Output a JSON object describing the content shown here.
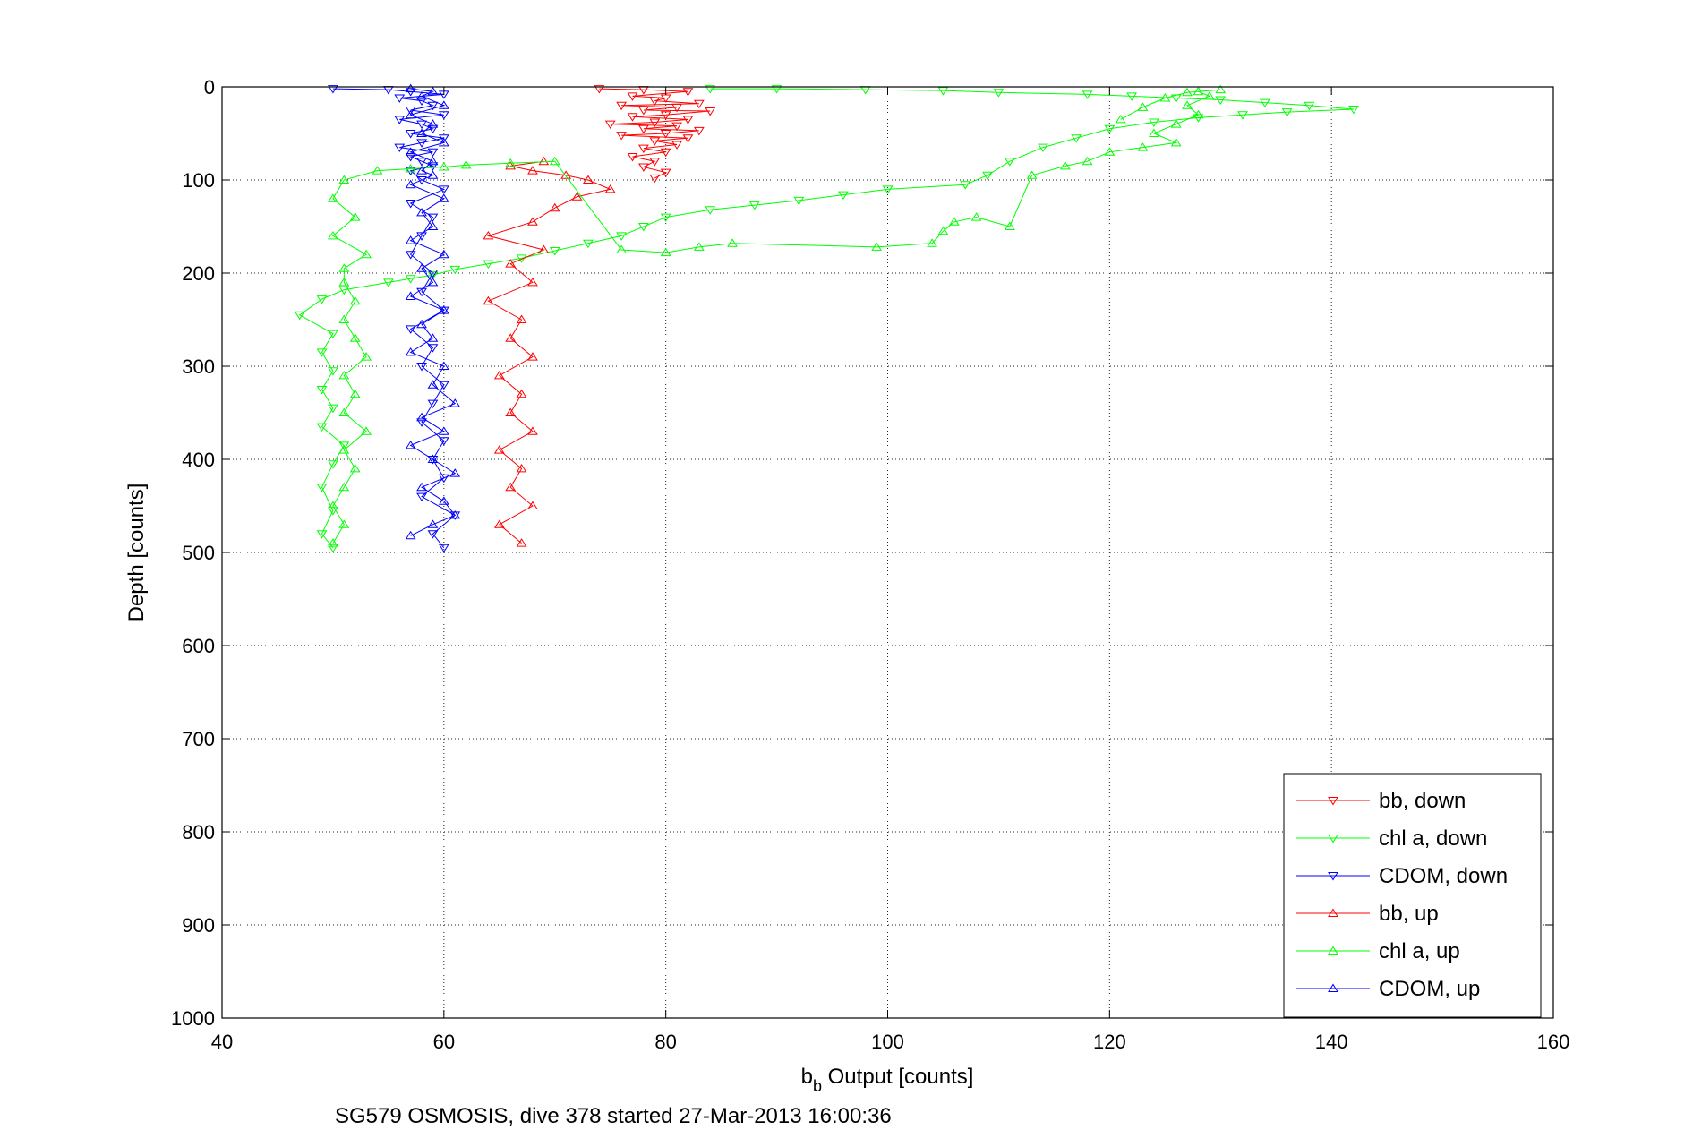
{
  "chart_data": {
    "type": "scatter",
    "xlabel": "b",
    "xlabel_subscript": "b",
    "xlabel_rest": " Output [counts]",
    "ylabel": "Depth [counts]",
    "caption": "SG579 OSMOSIS, dive 378 started 27-Mar-2013 16:00:36",
    "xlim": [
      40,
      160
    ],
    "ylim": [
      0,
      1000
    ],
    "y_reversed": true,
    "xticks": [
      40,
      60,
      80,
      100,
      120,
      140,
      160
    ],
    "yticks": [
      0,
      100,
      200,
      300,
      400,
      500,
      600,
      700,
      800,
      900,
      1000
    ],
    "grid": true,
    "legend_position": "bottom-right",
    "series": [
      {
        "name": "bb, down",
        "color": "#ff0000",
        "marker": "triangle-down",
        "points": [
          [
            74,
            2
          ],
          [
            78,
            3
          ],
          [
            82,
            5
          ],
          [
            77,
            10
          ],
          [
            80,
            12
          ],
          [
            79,
            15
          ],
          [
            83,
            18
          ],
          [
            76,
            20
          ],
          [
            81,
            22
          ],
          [
            78,
            25
          ],
          [
            84,
            26
          ],
          [
            80,
            30
          ],
          [
            77,
            32
          ],
          [
            82,
            35
          ],
          [
            79,
            38
          ],
          [
            75,
            40
          ],
          [
            81,
            42
          ],
          [
            78,
            45
          ],
          [
            83,
            47
          ],
          [
            80,
            50
          ],
          [
            76,
            52
          ],
          [
            82,
            55
          ],
          [
            79,
            58
          ],
          [
            81,
            62
          ],
          [
            78,
            66
          ],
          [
            80,
            70
          ],
          [
            77,
            75
          ],
          [
            79,
            80
          ],
          [
            78,
            86
          ],
          [
            80,
            92
          ],
          [
            79,
            98
          ]
        ]
      },
      {
        "name": "chl a, down",
        "color": "#00ff00",
        "marker": "triangle-down",
        "points": [
          [
            84,
            2
          ],
          [
            90,
            2
          ],
          [
            98,
            3
          ],
          [
            105,
            4
          ],
          [
            110,
            6
          ],
          [
            118,
            8
          ],
          [
            122,
            10
          ],
          [
            126,
            12
          ],
          [
            130,
            14
          ],
          [
            134,
            17
          ],
          [
            138,
            20
          ],
          [
            142,
            24
          ],
          [
            136,
            27
          ],
          [
            132,
            30
          ],
          [
            128,
            33
          ],
          [
            124,
            38
          ],
          [
            120,
            45
          ],
          [
            117,
            55
          ],
          [
            114,
            65
          ],
          [
            111,
            80
          ],
          [
            109,
            95
          ],
          [
            107,
            105
          ],
          [
            100,
            110
          ],
          [
            96,
            116
          ],
          [
            92,
            122
          ],
          [
            88,
            127
          ],
          [
            84,
            132
          ],
          [
            80,
            140
          ],
          [
            78,
            150
          ],
          [
            76,
            160
          ],
          [
            73,
            168
          ],
          [
            70,
            176
          ],
          [
            67,
            184
          ],
          [
            64,
            190
          ],
          [
            61,
            196
          ],
          [
            59,
            202
          ],
          [
            57,
            206
          ],
          [
            55,
            210
          ],
          [
            51,
            218
          ],
          [
            49,
            228
          ],
          [
            47,
            245
          ],
          [
            50,
            265
          ],
          [
            49,
            285
          ],
          [
            50,
            305
          ],
          [
            49,
            325
          ],
          [
            50,
            345
          ],
          [
            49,
            365
          ],
          [
            51,
            385
          ],
          [
            50,
            405
          ],
          [
            49,
            430
          ],
          [
            50,
            455
          ],
          [
            49,
            480
          ],
          [
            50,
            495
          ]
        ]
      },
      {
        "name": "CDOM, down",
        "color": "#0000ff",
        "marker": "triangle-down",
        "points": [
          [
            50,
            2
          ],
          [
            55,
            3
          ],
          [
            57,
            5
          ],
          [
            60,
            8
          ],
          [
            56,
            12
          ],
          [
            58,
            15
          ],
          [
            59,
            20
          ],
          [
            57,
            25
          ],
          [
            60,
            30
          ],
          [
            56,
            35
          ],
          [
            58,
            40
          ],
          [
            59,
            45
          ],
          [
            57,
            50
          ],
          [
            60,
            55
          ],
          [
            58,
            60
          ],
          [
            56,
            65
          ],
          [
            59,
            70
          ],
          [
            57,
            75
          ],
          [
            58,
            80
          ],
          [
            59,
            85
          ],
          [
            57,
            90
          ],
          [
            58,
            100
          ],
          [
            60,
            110
          ],
          [
            57,
            125
          ],
          [
            59,
            140
          ],
          [
            58,
            160
          ],
          [
            57,
            180
          ],
          [
            59,
            200
          ],
          [
            58,
            220
          ],
          [
            60,
            240
          ],
          [
            57,
            260
          ],
          [
            59,
            280
          ],
          [
            58,
            300
          ],
          [
            60,
            320
          ],
          [
            59,
            340
          ],
          [
            58,
            360
          ],
          [
            60,
            380
          ],
          [
            59,
            400
          ],
          [
            60,
            420
          ],
          [
            58,
            440
          ],
          [
            61,
            460
          ],
          [
            59,
            480
          ],
          [
            60,
            495
          ]
        ]
      },
      {
        "name": "bb, up",
        "color": "#ff0000",
        "marker": "triangle-up",
        "points": [
          [
            67,
            490
          ],
          [
            65,
            470
          ],
          [
            68,
            450
          ],
          [
            66,
            430
          ],
          [
            67,
            410
          ],
          [
            65,
            390
          ],
          [
            68,
            370
          ],
          [
            66,
            350
          ],
          [
            67,
            330
          ],
          [
            65,
            310
          ],
          [
            68,
            290
          ],
          [
            66,
            270
          ],
          [
            67,
            250
          ],
          [
            64,
            230
          ],
          [
            68,
            210
          ],
          [
            66,
            190
          ],
          [
            69,
            175
          ],
          [
            64,
            160
          ],
          [
            68,
            145
          ],
          [
            70,
            130
          ],
          [
            72,
            118
          ],
          [
            75,
            110
          ],
          [
            73,
            100
          ],
          [
            71,
            95
          ],
          [
            68,
            90
          ],
          [
            66,
            85
          ],
          [
            69,
            80
          ]
        ]
      },
      {
        "name": "chl a, up",
        "color": "#00ff00",
        "marker": "triangle-up",
        "points": [
          [
            50,
            490
          ],
          [
            51,
            470
          ],
          [
            50,
            450
          ],
          [
            51,
            430
          ],
          [
            52,
            410
          ],
          [
            51,
            390
          ],
          [
            53,
            370
          ],
          [
            51,
            350
          ],
          [
            52,
            330
          ],
          [
            51,
            310
          ],
          [
            53,
            290
          ],
          [
            52,
            270
          ],
          [
            51,
            250
          ],
          [
            52,
            230
          ],
          [
            51,
            210
          ],
          [
            51,
            195
          ],
          [
            53,
            180
          ],
          [
            50,
            160
          ],
          [
            52,
            140
          ],
          [
            50,
            120
          ],
          [
            51,
            100
          ],
          [
            54,
            90
          ],
          [
            57,
            88
          ],
          [
            60,
            86
          ],
          [
            62,
            84
          ],
          [
            66,
            82
          ],
          [
            70,
            80
          ],
          [
            76,
            175
          ],
          [
            80,
            178
          ],
          [
            83,
            172
          ],
          [
            86,
            168
          ],
          [
            99,
            172
          ],
          [
            104,
            168
          ],
          [
            105,
            155
          ],
          [
            106,
            145
          ],
          [
            108,
            140
          ],
          [
            111,
            150
          ],
          [
            113,
            95
          ],
          [
            116,
            85
          ],
          [
            118,
            80
          ],
          [
            120,
            70
          ],
          [
            123,
            65
          ],
          [
            126,
            60
          ],
          [
            124,
            50
          ],
          [
            126,
            40
          ],
          [
            128,
            30
          ],
          [
            127,
            20
          ],
          [
            129,
            10
          ],
          [
            128,
            5
          ],
          [
            130,
            3
          ],
          [
            127,
            6
          ],
          [
            125,
            12
          ],
          [
            123,
            22
          ],
          [
            121,
            35
          ]
        ]
      },
      {
        "name": "CDOM, up",
        "color": "#0000ff",
        "marker": "triangle-up",
        "points": [
          [
            57,
            482
          ],
          [
            59,
            470
          ],
          [
            61,
            460
          ],
          [
            60,
            445
          ],
          [
            58,
            430
          ],
          [
            61,
            415
          ],
          [
            59,
            400
          ],
          [
            57,
            385
          ],
          [
            60,
            370
          ],
          [
            58,
            355
          ],
          [
            61,
            340
          ],
          [
            59,
            320
          ],
          [
            60,
            300
          ],
          [
            57,
            285
          ],
          [
            59,
            270
          ],
          [
            58,
            255
          ],
          [
            60,
            240
          ],
          [
            57,
            225
          ],
          [
            59,
            210
          ],
          [
            58,
            195
          ],
          [
            60,
            180
          ],
          [
            57,
            165
          ],
          [
            59,
            150
          ],
          [
            58,
            135
          ],
          [
            60,
            120
          ],
          [
            57,
            105
          ],
          [
            59,
            95
          ],
          [
            58,
            90
          ],
          [
            59,
            80
          ],
          [
            57,
            70
          ],
          [
            60,
            60
          ],
          [
            58,
            50
          ],
          [
            59,
            40
          ],
          [
            57,
            30
          ],
          [
            60,
            20
          ],
          [
            58,
            10
          ],
          [
            59,
            5
          ],
          [
            57,
            2
          ]
        ]
      }
    ]
  }
}
